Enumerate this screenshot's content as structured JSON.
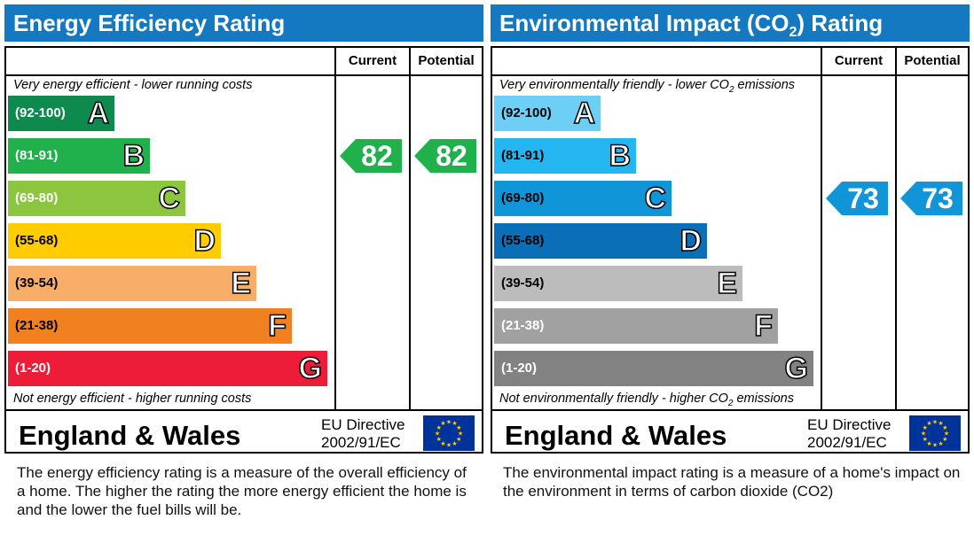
{
  "colors": {
    "title_bar": "#1479c0",
    "energy_bands": [
      "#0f8a4f",
      "#21b14c",
      "#8cc63f",
      "#ffcc00",
      "#f8ae66",
      "#f08020",
      "#ed1c39"
    ],
    "env_bands": [
      "#6dcff6",
      "#23b6f0",
      "#1195d9",
      "#0b6fb8",
      "#bcbcbc",
      "#a1a1a1",
      "#828282"
    ],
    "energy_rating": "#21b14c",
    "env_rating": "#1195d9"
  },
  "chart_data": [
    {
      "type": "bar",
      "title": "Energy Efficiency Rating",
      "columns": [
        "Current",
        "Potential"
      ],
      "top_caption": "Very energy efficient - lower running costs",
      "bottom_caption": "Not energy efficient - higher running costs",
      "bands": [
        {
          "range": "(92-100)",
          "letter": "A",
          "text_color": "#ffffff"
        },
        {
          "range": "(81-91)",
          "letter": "B",
          "text_color": "#ffffff"
        },
        {
          "range": "(69-80)",
          "letter": "C",
          "text_color": "#ffffff"
        },
        {
          "range": "(55-68)",
          "letter": "D",
          "text_color": "#000000"
        },
        {
          "range": "(39-54)",
          "letter": "E",
          "text_color": "#000000"
        },
        {
          "range": "(21-38)",
          "letter": "F",
          "text_color": "#000000"
        },
        {
          "range": "(1-20)",
          "letter": "G",
          "text_color": "#ffffff"
        }
      ],
      "current": 82,
      "potential": 82,
      "country": "England & Wales",
      "directive_line1": "EU Directive",
      "directive_line2": "2002/91/EC",
      "description": "The energy efficiency rating is a measure of the overall efficiency of a home.  The higher the rating the more energy efficient the home is and the lower the fuel bills will be."
    },
    {
      "type": "bar",
      "title_main": "Environmental Impact (CO",
      "title_sub": "2",
      "title_end": ") Rating",
      "columns": [
        "Current",
        "Potential"
      ],
      "top_caption_main": "Very environmentally friendly - lower CO",
      "top_caption_sub": "2",
      "top_caption_end": " emissions",
      "bottom_caption_main": "Not environmentally friendly - higher CO",
      "bottom_caption_sub": "2",
      "bottom_caption_end": " emissions",
      "bands": [
        {
          "range": "(92-100)",
          "letter": "A",
          "text_color": "#000000"
        },
        {
          "range": "(81-91)",
          "letter": "B",
          "text_color": "#000000"
        },
        {
          "range": "(69-80)",
          "letter": "C",
          "text_color": "#000000"
        },
        {
          "range": "(55-68)",
          "letter": "D",
          "text_color": "#000000"
        },
        {
          "range": "(39-54)",
          "letter": "E",
          "text_color": "#000000"
        },
        {
          "range": "(21-38)",
          "letter": "F",
          "text_color": "#ffffff"
        },
        {
          "range": "(1-20)",
          "letter": "G",
          "text_color": "#ffffff"
        }
      ],
      "current": 73,
      "potential": 73,
      "country": "England & Wales",
      "directive_line1": "EU Directive",
      "directive_line2": "2002/91/EC",
      "description": "The environmental impact rating is a measure of a home's impact on the environment in terms of carbon dioxide (CO2)"
    }
  ]
}
